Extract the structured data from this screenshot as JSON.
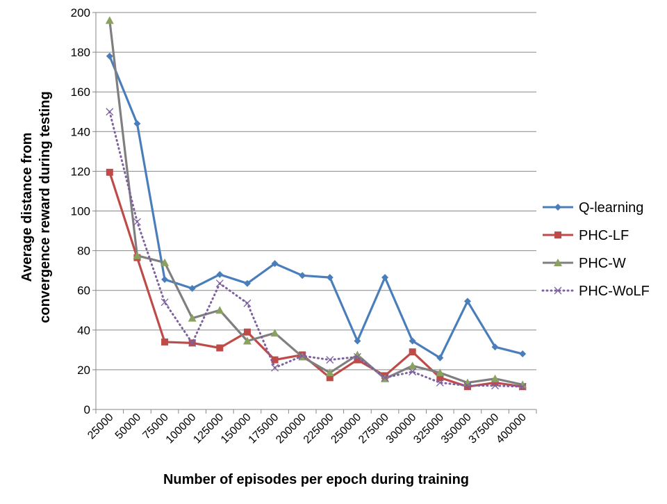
{
  "chart_data": {
    "type": "line",
    "title": "",
    "xlabel": "Number of episodes per epoch during training",
    "ylabel": [
      "Average distance from",
      "convergence reward during testing"
    ],
    "ylim": [
      0,
      200
    ],
    "yticks": [
      0,
      20,
      40,
      60,
      80,
      100,
      120,
      140,
      160,
      180,
      200
    ],
    "grid": true,
    "legend_position": "right",
    "categories": [
      "25000",
      "50000",
      "75000",
      "100000",
      "125000",
      "150000",
      "175000",
      "200000",
      "225000",
      "250000",
      "275000",
      "300000",
      "325000",
      "350000",
      "375000",
      "400000"
    ],
    "series": [
      {
        "name": "Q-learning",
        "color": "#4a7ebb",
        "marker": "diamond",
        "dash": false,
        "values": [
          178,
          144,
          65.5,
          61,
          68,
          63.5,
          73.5,
          67.5,
          66.5,
          34.5,
          66.5,
          34.5,
          26,
          54.5,
          31.5,
          28
        ]
      },
      {
        "name": "PHC-LF",
        "color": "#be4b48",
        "marker": "square",
        "dash": false,
        "values": [
          119.5,
          76.5,
          34,
          33.5,
          31,
          39,
          25,
          27.5,
          16,
          25,
          17,
          29,
          16,
          11.5,
          13.5,
          11.5
        ]
      },
      {
        "name": "PHC-W",
        "color": "#7f7f7f",
        "markerColor": "#8aa160",
        "marker": "triangle",
        "dash": false,
        "values": [
          196,
          77.5,
          74,
          46,
          50,
          34.5,
          38.5,
          26.5,
          18.5,
          27.5,
          15.5,
          22,
          18.5,
          13.5,
          15.5,
          12.5
        ]
      },
      {
        "name": "PHC-WoLF",
        "color": "#7d60a0",
        "marker": "x",
        "dash": true,
        "values": [
          150,
          94.5,
          54,
          33.5,
          63.5,
          53.5,
          21,
          27,
          25,
          26.5,
          16,
          19,
          13.5,
          12,
          12,
          11.5
        ]
      }
    ]
  }
}
